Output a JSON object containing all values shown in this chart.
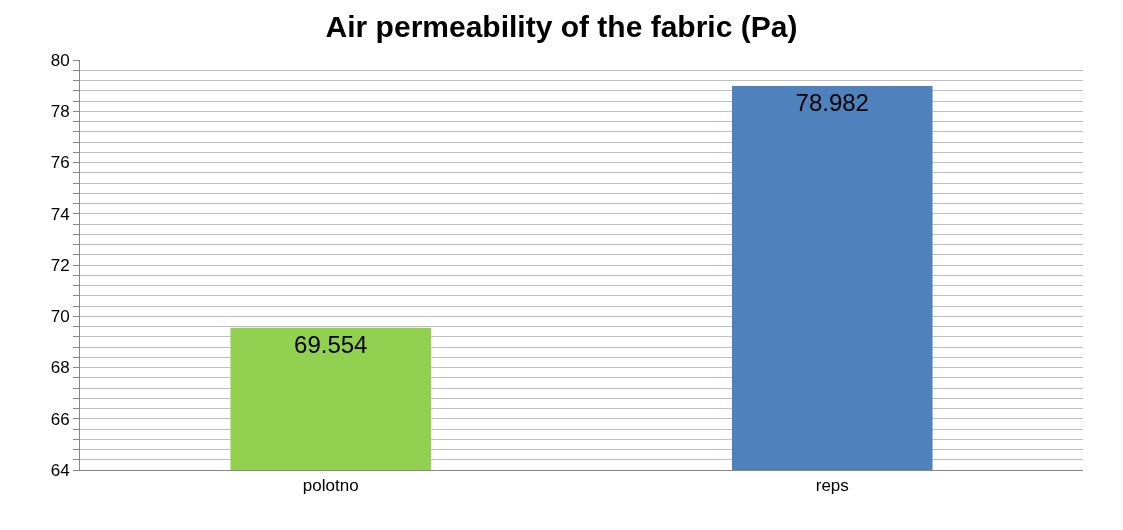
{
  "chart_data": {
    "type": "bar",
    "title": "Air permeability of the fabric (Pa)",
    "categories": [
      "polotno",
      "reps"
    ],
    "values": [
      69.554,
      78.982
    ],
    "colors": [
      "#92d050",
      "#4f81bd"
    ],
    "data_labels": true,
    "ylim": [
      64,
      80
    ],
    "yticks": [
      64,
      {
        "value": 64.4,
        "label": null
      },
      {
        "value": 64.8,
        "label": null
      },
      {
        "value": 65.2,
        "label": null
      },
      {
        "value": 65.6,
        "label": null
      },
      66,
      {
        "value": 66.4,
        "label": null
      },
      {
        "value": 66.8,
        "label": null
      },
      {
        "value": 67.2,
        "label": null
      },
      {
        "value": 67.6,
        "label": null
      },
      68,
      {
        "value": 68.4,
        "label": null
      },
      {
        "value": 68.8,
        "label": null
      },
      {
        "value": 69.2,
        "label": null
      },
      {
        "value": 69.6,
        "label": null
      },
      70,
      {
        "value": 70.4,
        "label": null
      },
      {
        "value": 70.8,
        "label": null
      },
      {
        "value": 71.2,
        "label": null
      },
      {
        "value": 71.6,
        "label": null
      },
      72,
      {
        "value": 72.4,
        "label": null
      },
      {
        "value": 72.8,
        "label": null
      },
      {
        "value": 73.2,
        "label": null
      },
      {
        "value": 73.6,
        "label": null
      },
      74,
      {
        "value": 74.4,
        "label": null
      },
      {
        "value": 74.8,
        "label": null
      },
      {
        "value": 75.2,
        "label": null
      },
      {
        "value": 75.6,
        "label": null
      },
      76,
      {
        "value": 76.4,
        "label": null
      },
      {
        "value": 76.8,
        "label": null
      },
      {
        "value": 77.2,
        "label": null
      },
      {
        "value": 77.6,
        "label": null
      },
      78,
      {
        "value": 78.4,
        "label": null
      },
      {
        "value": 78.8,
        "label": null
      },
      {
        "value": 79.2,
        "label": null
      },
      {
        "value": 79.6,
        "label": null
      },
      80
    ],
    "grid": "y"
  }
}
